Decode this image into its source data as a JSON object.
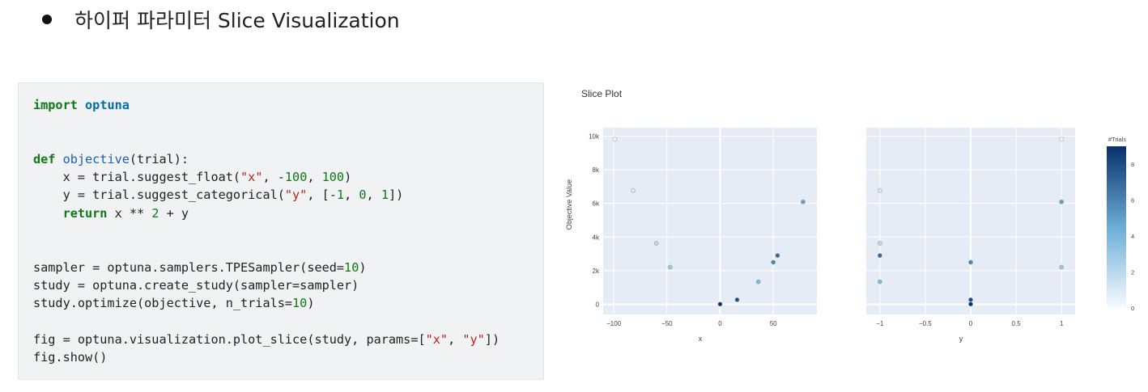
{
  "heading": {
    "text": "하이퍼 파라미터 Slice Visualization"
  },
  "code": {
    "lines": [
      [
        {
          "t": "import",
          "c": "kw"
        },
        {
          "t": " "
        },
        {
          "t": "optuna",
          "c": "md"
        }
      ],
      [],
      [],
      [
        {
          "t": "def",
          "c": "kw"
        },
        {
          "t": " "
        },
        {
          "t": "objective",
          "c": "fn"
        },
        {
          "t": "(trial):"
        }
      ],
      [
        {
          "t": "    x = trial.suggest_float("
        },
        {
          "t": "\"x\"",
          "c": "str"
        },
        {
          "t": ", -"
        },
        {
          "t": "100",
          "c": "num"
        },
        {
          "t": ", "
        },
        {
          "t": "100",
          "c": "num"
        },
        {
          "t": ")"
        }
      ],
      [
        {
          "t": "    y = trial.suggest_categorical("
        },
        {
          "t": "\"y\"",
          "c": "str"
        },
        {
          "t": ", [-"
        },
        {
          "t": "1",
          "c": "num"
        },
        {
          "t": ", "
        },
        {
          "t": "0",
          "c": "num"
        },
        {
          "t": ", "
        },
        {
          "t": "1",
          "c": "num"
        },
        {
          "t": "])"
        }
      ],
      [
        {
          "t": "    "
        },
        {
          "t": "return",
          "c": "kw"
        },
        {
          "t": " x ** "
        },
        {
          "t": "2",
          "c": "num"
        },
        {
          "t": " + y"
        }
      ],
      [],
      [],
      [
        {
          "t": "sampler = optuna.samplers.TPESampler(seed="
        },
        {
          "t": "10",
          "c": "num"
        },
        {
          "t": ")"
        }
      ],
      [
        {
          "t": "study = optuna.create_study(sampler=sampler)"
        }
      ],
      [
        {
          "t": "study.optimize(objective, n_trials="
        },
        {
          "t": "10",
          "c": "num"
        },
        {
          "t": ")"
        }
      ],
      [],
      [
        {
          "t": "fig = optuna.visualization.plot_slice(study, params=["
        },
        {
          "t": "\"x\"",
          "c": "str"
        },
        {
          "t": ", "
        },
        {
          "t": "\"y\"",
          "c": "str"
        },
        {
          "t": "])"
        }
      ],
      [
        {
          "t": "fig.show()"
        }
      ]
    ]
  },
  "chart_data": {
    "type": "scatter",
    "title": "Slice Plot",
    "ylabel": "Objective Value",
    "ylim": [
      -600,
      10500
    ],
    "yticks": [
      0,
      2000,
      4000,
      6000,
      8000,
      10000
    ],
    "ytick_labels": [
      "0",
      "2k",
      "4k",
      "6k",
      "8k",
      "10k"
    ],
    "subplots": [
      {
        "xlabel": "x",
        "xlim": [
          -110,
          91
        ],
        "xticks": [
          -100,
          -50,
          0,
          50
        ],
        "xtick_labels": [
          "−100",
          "−50",
          "0",
          "50"
        ],
        "points": [
          {
            "x": -99,
            "y": 9810,
            "trial": 0
          },
          {
            "x": -82,
            "y": 6770,
            "trial": 1
          },
          {
            "x": -60,
            "y": 3630,
            "trial": 2
          },
          {
            "x": -47,
            "y": 2210,
            "trial": 3
          },
          {
            "x": 36,
            "y": 1340,
            "trial": 4
          },
          {
            "x": 78,
            "y": 6090,
            "trial": 5
          },
          {
            "x": 50,
            "y": 2500,
            "trial": 6
          },
          {
            "x": 54,
            "y": 2900,
            "trial": 7
          },
          {
            "x": 16,
            "y": 270,
            "trial": 8
          },
          {
            "x": 0,
            "y": 10,
            "trial": 9
          }
        ]
      },
      {
        "xlabel": "y",
        "xlim": [
          -1.15,
          1.15
        ],
        "xticks": [
          -1,
          -0.5,
          0,
          0.5,
          1
        ],
        "xtick_labels": [
          "−1",
          "−0.5",
          "0",
          "0.5",
          "1"
        ],
        "points": [
          {
            "x": 1,
            "y": 9810,
            "trial": 0
          },
          {
            "x": -1,
            "y": 6770,
            "trial": 1
          },
          {
            "x": -1,
            "y": 3630,
            "trial": 2
          },
          {
            "x": 1,
            "y": 2210,
            "trial": 3
          },
          {
            "x": -1,
            "y": 1340,
            "trial": 4
          },
          {
            "x": 1,
            "y": 6090,
            "trial": 5
          },
          {
            "x": 0,
            "y": 2500,
            "trial": 6
          },
          {
            "x": -1,
            "y": 2900,
            "trial": 7
          },
          {
            "x": 0,
            "y": 270,
            "trial": 8
          },
          {
            "x": 0,
            "y": 10,
            "trial": 9
          }
        ]
      }
    ],
    "colorbar": {
      "title": "#Trials",
      "range": [
        0,
        9
      ],
      "ticks": [
        0,
        2,
        4,
        6,
        8
      ],
      "tick_labels": [
        "0",
        "2",
        "4",
        "6",
        "8"
      ]
    },
    "plot_bg": "#e5ecf6",
    "colors": {
      "low": "#f7fbff",
      "high": "#08306b"
    }
  }
}
